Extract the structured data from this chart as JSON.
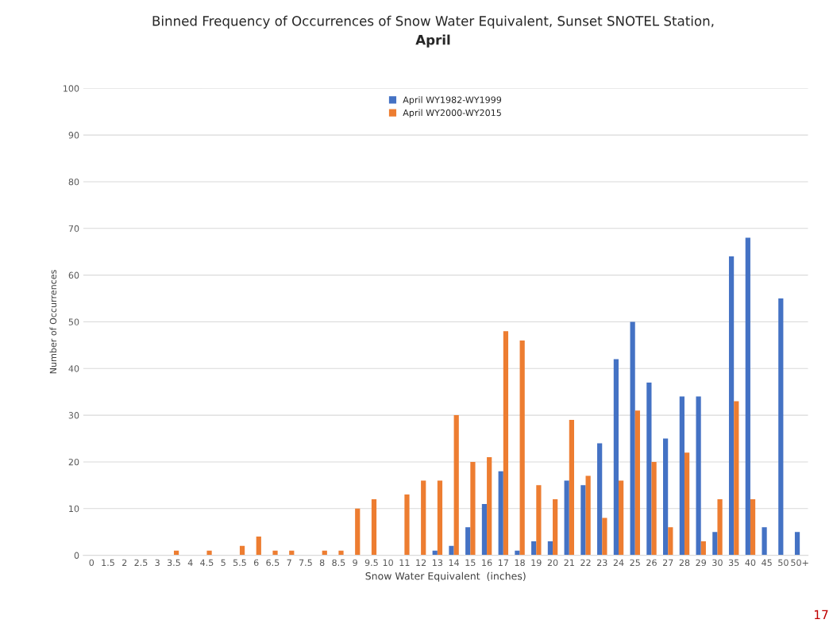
{
  "chart_data": {
    "type": "bar",
    "title": "Binned Frequency of Occurrences of Snow Water Equivalent, Sunset SNOTEL Station,",
    "subtitle": "April",
    "xlabel": "Snow Water Equivalent  (inches)",
    "ylabel": "Number of Occurrences",
    "categories": [
      "0",
      "1.5",
      "2",
      "2.5",
      "3",
      "3.5",
      "4",
      "4.5",
      "5",
      "5.5",
      "6",
      "6.5",
      "7",
      "7.5",
      "8",
      "8.5",
      "9",
      "9.5",
      "10",
      "11",
      "12",
      "13",
      "14",
      "15",
      "16",
      "17",
      "18",
      "19",
      "20",
      "21",
      "22",
      "23",
      "24",
      "25",
      "26",
      "27",
      "28",
      "29",
      "30",
      "35",
      "40",
      "45",
      "50",
      "50+"
    ],
    "series": [
      {
        "name": "April WY1982-WY1999",
        "color": "#4472c4",
        "values": [
          0,
          0,
          0,
          0,
          0,
          0,
          0,
          0,
          0,
          0,
          0,
          0,
          0,
          0,
          0,
          0,
          0,
          0,
          0,
          0,
          0,
          1,
          2,
          6,
          11,
          18,
          1,
          3,
          3,
          16,
          15,
          24,
          42,
          50,
          37,
          25,
          34,
          34,
          5,
          64,
          68,
          6,
          55,
          5
        ]
      },
      {
        "name": "April WY2000-WY2015",
        "color": "#ed7d31",
        "values": [
          0,
          0,
          0,
          0,
          0,
          1,
          0,
          1,
          0,
          2,
          4,
          1,
          1,
          0,
          1,
          1,
          10,
          12,
          0,
          13,
          16,
          16,
          30,
          20,
          21,
          48,
          46,
          15,
          12,
          29,
          17,
          8,
          16,
          31,
          20,
          6,
          22,
          3,
          12,
          33,
          12,
          0,
          0,
          0
        ]
      }
    ],
    "ylim": [
      0,
      100
    ],
    "yticks": [
      0,
      10,
      20,
      30,
      40,
      50,
      60,
      70,
      80,
      90,
      100
    ],
    "grid": "y",
    "legend": "top",
    "annotations": [
      "17"
    ]
  }
}
